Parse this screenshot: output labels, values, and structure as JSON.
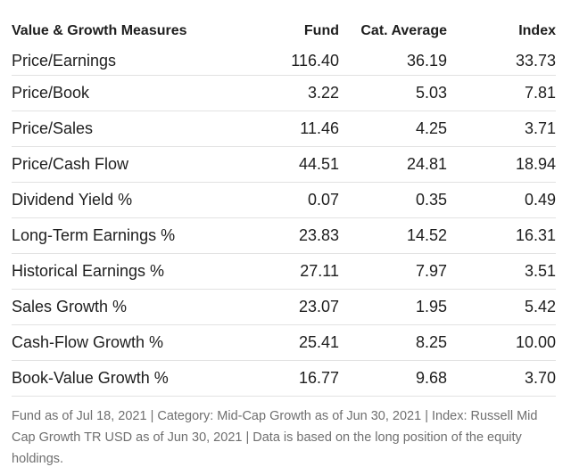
{
  "table": {
    "headers": {
      "label": "Value & Growth Measures",
      "fund": "Fund",
      "category": "Cat. Average",
      "index": "Index"
    },
    "rows": [
      {
        "label": "Price/Earnings",
        "fund": "116.40",
        "category": "36.19",
        "index": "33.73"
      },
      {
        "label": "Price/Book",
        "fund": "3.22",
        "category": "5.03",
        "index": "7.81"
      },
      {
        "label": "Price/Sales",
        "fund": "11.46",
        "category": "4.25",
        "index": "3.71"
      },
      {
        "label": "Price/Cash Flow",
        "fund": "44.51",
        "category": "24.81",
        "index": "18.94"
      },
      {
        "label": "Dividend Yield %",
        "fund": "0.07",
        "category": "0.35",
        "index": "0.49"
      },
      {
        "label": "Long-Term Earnings %",
        "fund": "23.83",
        "category": "14.52",
        "index": "16.31"
      },
      {
        "label": "Historical Earnings %",
        "fund": "27.11",
        "category": "7.97",
        "index": "3.51"
      },
      {
        "label": "Sales Growth %",
        "fund": "23.07",
        "category": "1.95",
        "index": "5.42"
      },
      {
        "label": "Cash-Flow Growth %",
        "fund": "25.41",
        "category": "8.25",
        "index": "10.00"
      },
      {
        "label": "Book-Value Growth %",
        "fund": "16.77",
        "category": "9.68",
        "index": "3.70"
      }
    ]
  },
  "footnote": "Fund as of Jul 18, 2021 | Category: Mid-Cap Growth as of Jun 30, 2021 | Index: Russell Mid Cap Growth TR USD as of Jun 30, 2021 | Data is based on the long position of the equity holdings."
}
